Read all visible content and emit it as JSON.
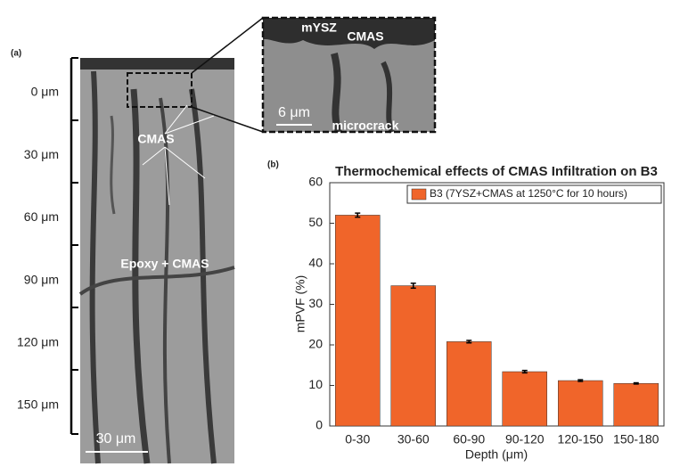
{
  "panel_a": {
    "label": "(a)",
    "depth_labels": [
      "0 μm",
      "30 μm",
      "60 μm",
      "90 μm",
      "120 μm",
      "150 μm"
    ],
    "annotations": [
      "CMAS",
      "Epoxy + CMAS"
    ],
    "scale_bar": "30 μm",
    "inset": {
      "labels": [
        "mYSZ",
        "CMAS",
        "microcrack"
      ],
      "scale_bar": "6 μm"
    }
  },
  "chart_data": {
    "type": "bar",
    "panel_label": "(b)",
    "title": "Thermochemical effects of CMAS Infiltration on B3",
    "xlabel": "Depth (μm)",
    "ylabel": "mPVF (%)",
    "categories": [
      "0-30",
      "30-60",
      "60-90",
      "90-120",
      "120-150",
      "150-180"
    ],
    "series": [
      {
        "name": "B3 (7YSZ+CMAS at 1250°C for 10 hours)",
        "color": "#f0652a",
        "values": [
          52,
          34.6,
          20.8,
          13.4,
          11.2,
          10.5
        ],
        "errors": [
          0.5,
          0.6,
          0.3,
          0.3,
          0.2,
          0.15
        ]
      }
    ],
    "ylim": [
      0,
      60
    ],
    "yticks": [
      0,
      10,
      20,
      30,
      40,
      50,
      60
    ],
    "legend": "top-right"
  }
}
